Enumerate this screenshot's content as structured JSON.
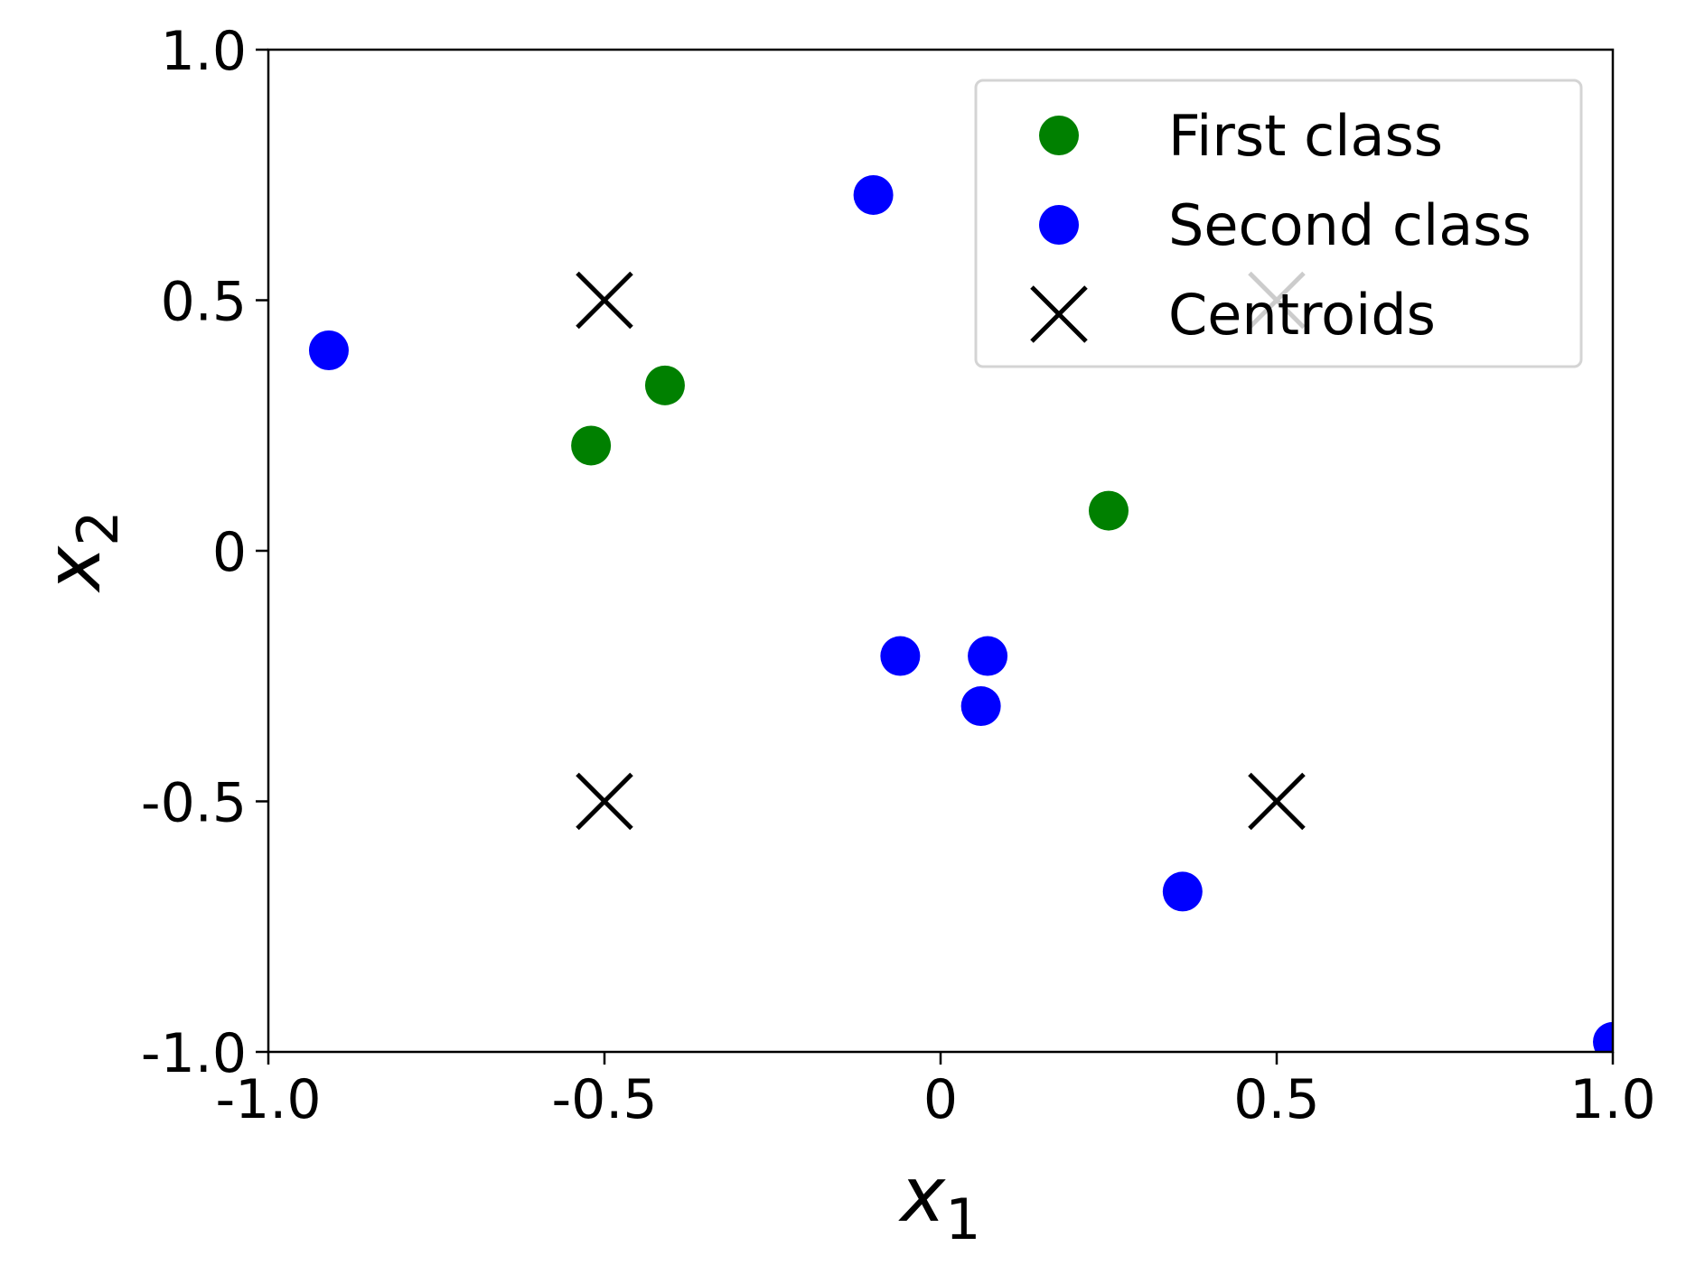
{
  "chart_data": {
    "type": "scatter",
    "xlabel": {
      "base": "x",
      "sub": "1"
    },
    "ylabel": {
      "base": "x",
      "sub": "2"
    },
    "xlim": [
      -1.0,
      1.0
    ],
    "ylim": [
      -1.0,
      1.0
    ],
    "x_ticks": [
      {
        "value": -1.0,
        "label": "-1.0"
      },
      {
        "value": -0.5,
        "label": "-0.5"
      },
      {
        "value": 0,
        "label": "0"
      },
      {
        "value": 0.5,
        "label": "0.5"
      },
      {
        "value": 1.0,
        "label": "1.0"
      }
    ],
    "y_ticks": [
      {
        "value": -1.0,
        "label": "-1.0"
      },
      {
        "value": -0.5,
        "label": "-0.5"
      },
      {
        "value": 0,
        "label": "0"
      },
      {
        "value": 0.5,
        "label": "0.5"
      },
      {
        "value": 1.0,
        "label": "1.0"
      }
    ],
    "grid": false,
    "legend_position": "top-right",
    "series": [
      {
        "name": "First class",
        "marker": "circle",
        "color": "#008000",
        "points": [
          [
            -0.52,
            0.21
          ],
          [
            -0.41,
            0.33
          ],
          [
            0.25,
            0.08
          ]
        ]
      },
      {
        "name": "Second class",
        "marker": "circle",
        "color": "#0000ff",
        "points": [
          [
            -0.91,
            0.4
          ],
          [
            -0.1,
            0.71
          ],
          [
            -0.06,
            -0.21
          ],
          [
            0.07,
            -0.21
          ],
          [
            0.06,
            -0.31
          ],
          [
            0.36,
            -0.68
          ],
          [
            1.0,
            -0.98
          ]
        ]
      },
      {
        "name": "Centroids",
        "marker": "x",
        "color": "#000000",
        "points": [
          [
            -0.5,
            0.5
          ],
          [
            0.5,
            0.5
          ],
          [
            -0.5,
            -0.5
          ],
          [
            0.5,
            -0.5
          ]
        ]
      }
    ]
  }
}
